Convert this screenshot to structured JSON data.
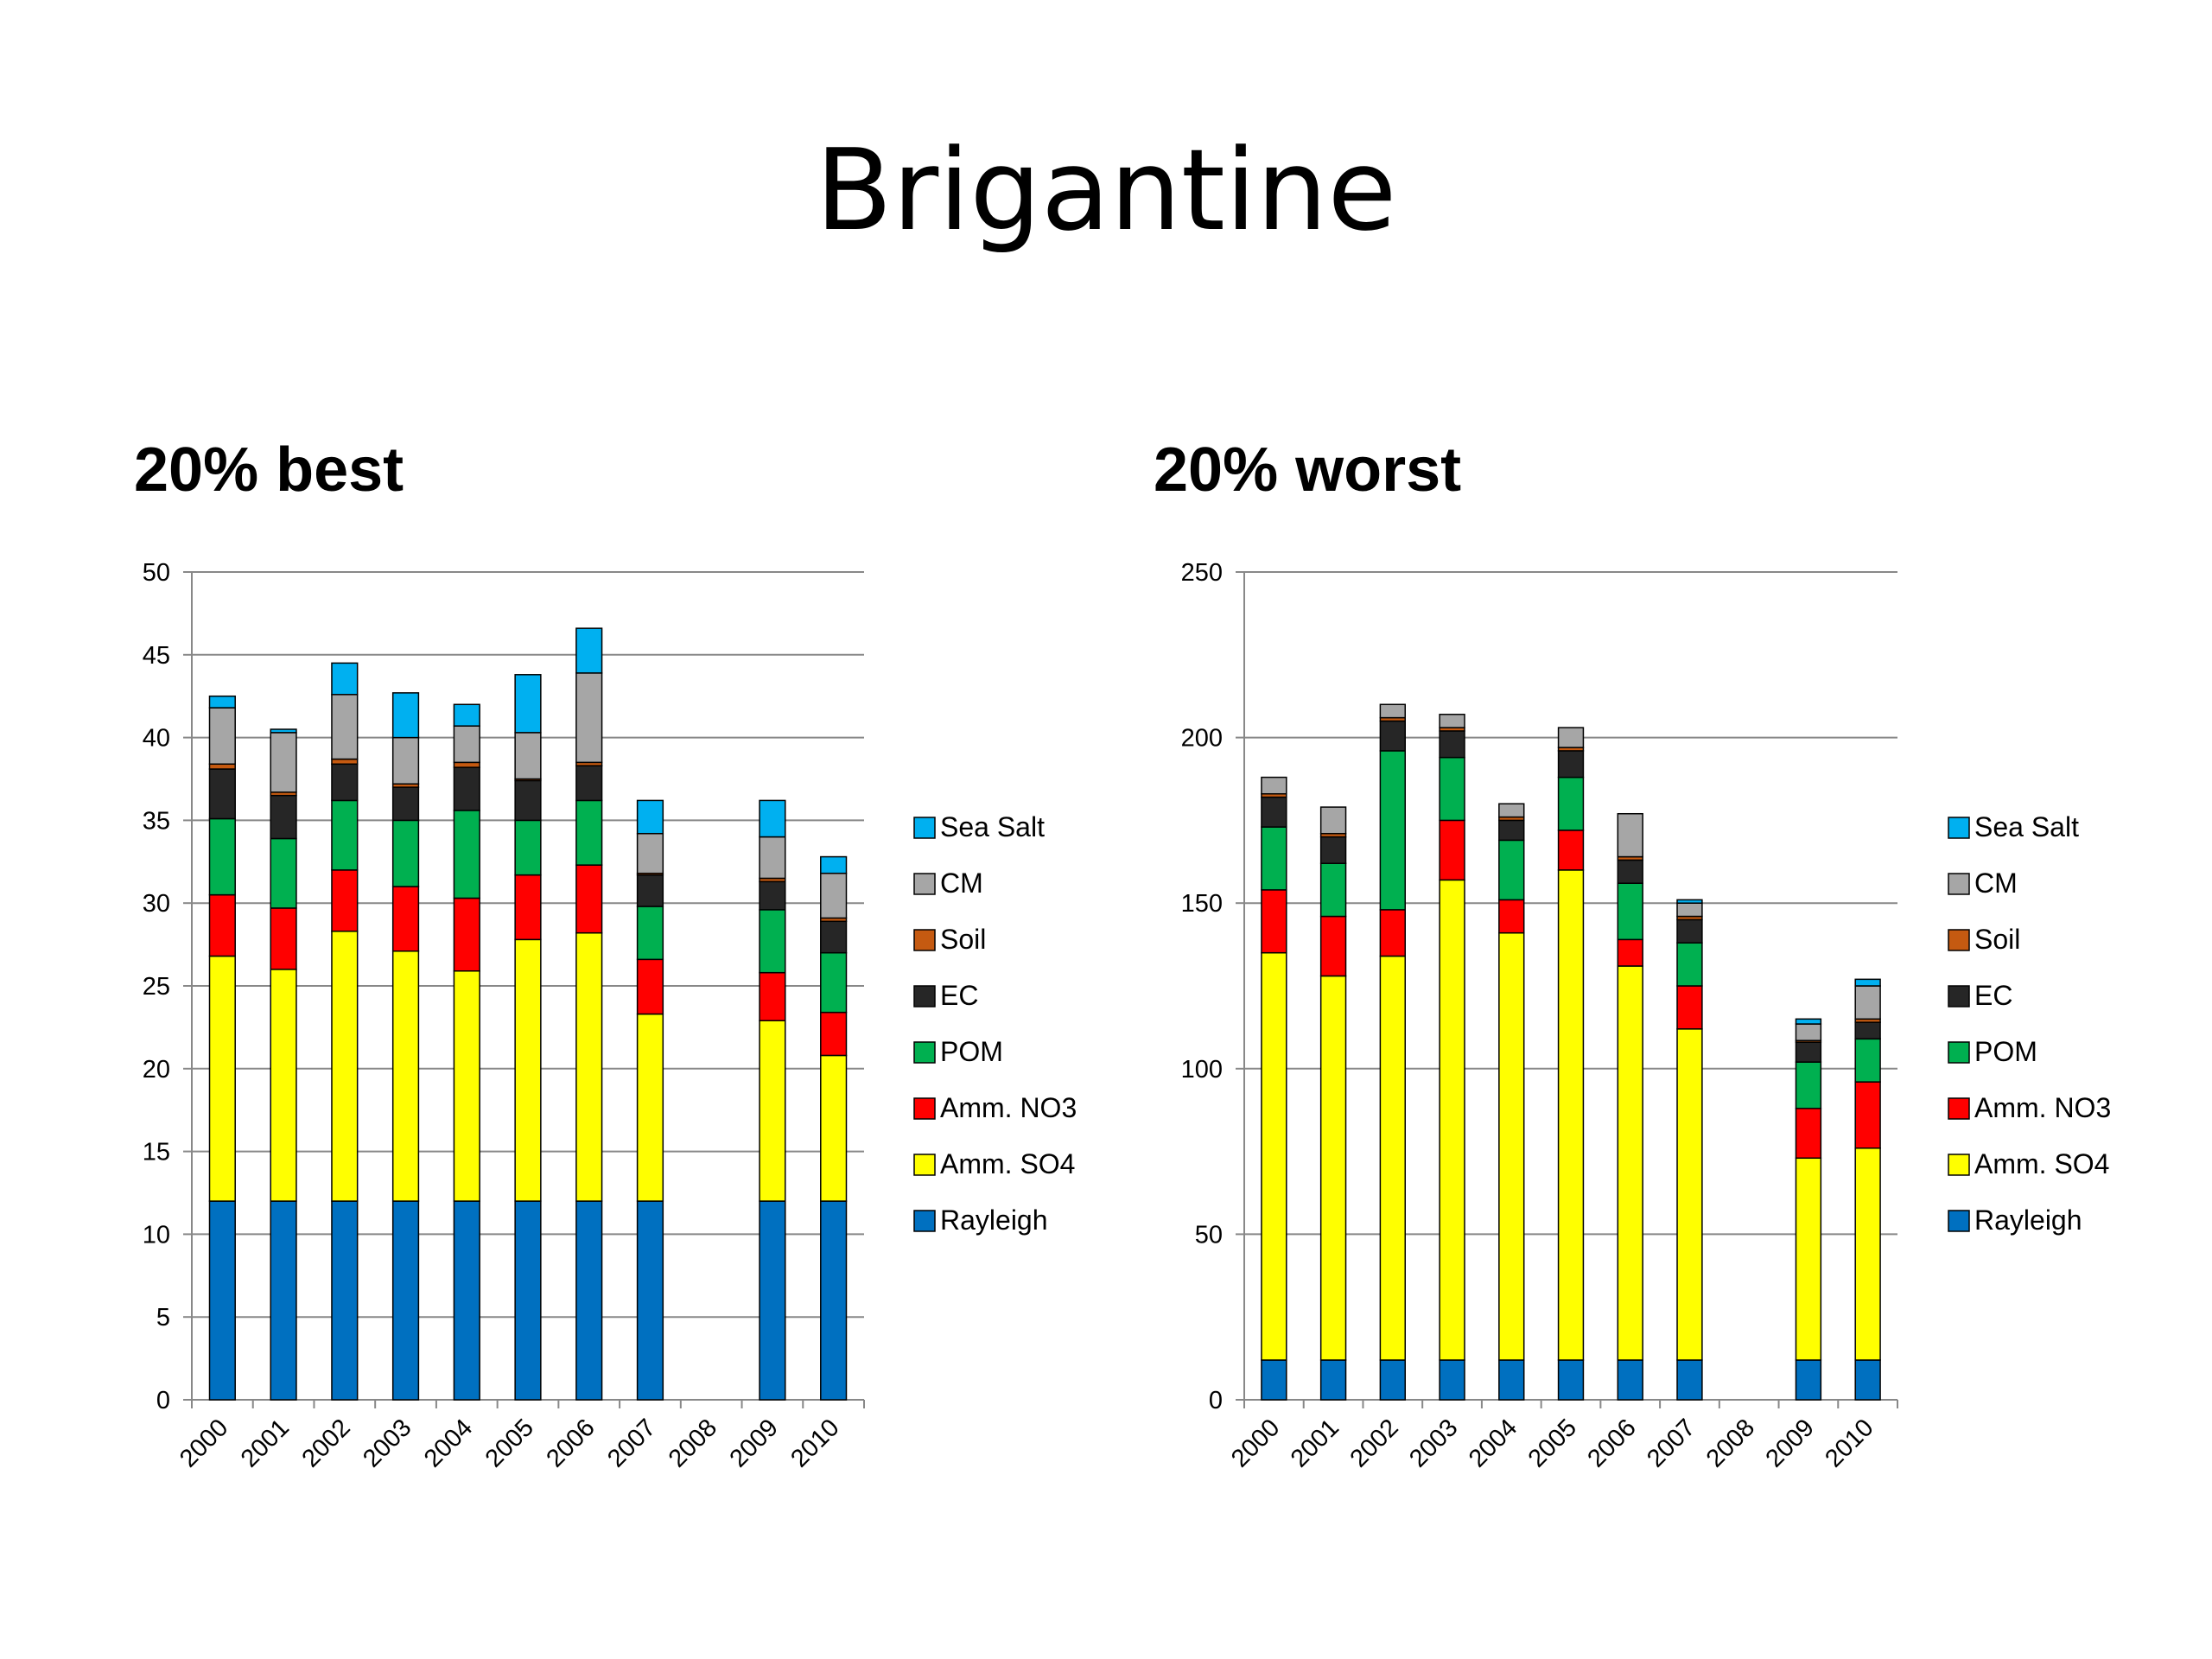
{
  "page": {
    "title": "Brigantine"
  },
  "chart_data": [
    {
      "type": "bar",
      "stacked": true,
      "title": "20% best",
      "xlabel": "",
      "ylabel": "",
      "ylim": [
        0,
        50
      ],
      "yticks": [
        0,
        5,
        10,
        15,
        20,
        25,
        30,
        35,
        40,
        45,
        50
      ],
      "grid": true,
      "legend_position": "right",
      "categories": [
        "2000",
        "2001",
        "2002",
        "2003",
        "2004",
        "2005",
        "2006",
        "2007",
        "2008",
        "2009",
        "2010"
      ],
      "series": [
        {
          "name": "Rayleigh",
          "color": "#0070C0",
          "values": [
            12,
            12,
            12,
            12,
            12,
            12,
            12,
            12,
            null,
            12,
            12
          ]
        },
        {
          "name": "Amm. SO4",
          "color": "#FFFF00",
          "values": [
            14.8,
            14,
            16.3,
            15.1,
            13.9,
            15.8,
            16.2,
            11.3,
            null,
            10.9,
            8.8
          ]
        },
        {
          "name": "Amm. NO3",
          "color": "#FF0000",
          "values": [
            3.7,
            3.7,
            3.7,
            3.9,
            4.4,
            3.9,
            4.1,
            3.3,
            null,
            2.9,
            2.6
          ]
        },
        {
          "name": "POM",
          "color": "#00B050",
          "values": [
            4.6,
            4.2,
            4.2,
            4,
            5.3,
            3.3,
            3.9,
            3.2,
            null,
            3.8,
            3.6
          ]
        },
        {
          "name": "EC",
          "color": "#262626",
          "values": [
            3,
            2.6,
            2.2,
            2,
            2.6,
            2.4,
            2.1,
            1.9,
            null,
            1.7,
            1.9
          ]
        },
        {
          "name": "Soil",
          "color": "#C55A11",
          "values": [
            0.3,
            0.2,
            0.3,
            0.2,
            0.3,
            0.1,
            0.2,
            0.1,
            null,
            0.2,
            0.2
          ]
        },
        {
          "name": "CM",
          "color": "#A6A6A6",
          "values": [
            3.4,
            3.6,
            3.9,
            2.8,
            2.2,
            2.8,
            5.4,
            2.4,
            null,
            2.5,
            2.7
          ]
        },
        {
          "name": "Sea Salt",
          "color": "#00B0F0",
          "values": [
            0.7,
            0.2,
            1.9,
            2.7,
            1.3,
            3.5,
            2.7,
            2,
            null,
            2.2,
            1
          ]
        }
      ]
    },
    {
      "type": "bar",
      "stacked": true,
      "title": "20% worst",
      "xlabel": "",
      "ylabel": "",
      "ylim": [
        0,
        250
      ],
      "yticks": [
        0,
        50,
        100,
        150,
        200,
        250
      ],
      "grid": true,
      "legend_position": "right",
      "categories": [
        "2000",
        "2001",
        "2002",
        "2003",
        "2004",
        "2005",
        "2006",
        "2007",
        "2008",
        "2009",
        "2010"
      ],
      "series": [
        {
          "name": "Rayleigh",
          "color": "#0070C0",
          "values": [
            12,
            12,
            12,
            12,
            12,
            12,
            12,
            12,
            null,
            12,
            12
          ]
        },
        {
          "name": "Amm. SO4",
          "color": "#FFFF00",
          "values": [
            123,
            116,
            122,
            145,
            129,
            148,
            119,
            100,
            null,
            61,
            64
          ]
        },
        {
          "name": "Amm. NO3",
          "color": "#FF0000",
          "values": [
            19,
            18,
            14,
            18,
            10,
            12,
            8,
            13,
            null,
            15,
            20
          ]
        },
        {
          "name": "POM",
          "color": "#00B050",
          "values": [
            19,
            16,
            48,
            19,
            18,
            16,
            17,
            13,
            null,
            14,
            13
          ]
        },
        {
          "name": "EC",
          "color": "#262626",
          "values": [
            9,
            8,
            9,
            8,
            6,
            8,
            7,
            7,
            null,
            6,
            5
          ]
        },
        {
          "name": "Soil",
          "color": "#C55A11",
          "values": [
            1,
            1,
            1,
            1,
            1,
            1,
            1,
            1,
            null,
            0.5,
            1
          ]
        },
        {
          "name": "CM",
          "color": "#A6A6A6",
          "values": [
            5,
            8,
            4,
            4,
            4,
            6,
            13,
            4,
            null,
            5,
            10
          ]
        },
        {
          "name": "Sea Salt",
          "color": "#00B0F0",
          "values": [
            0,
            0,
            0,
            0,
            0,
            0,
            0,
            1,
            null,
            1.5,
            2
          ]
        }
      ]
    }
  ]
}
